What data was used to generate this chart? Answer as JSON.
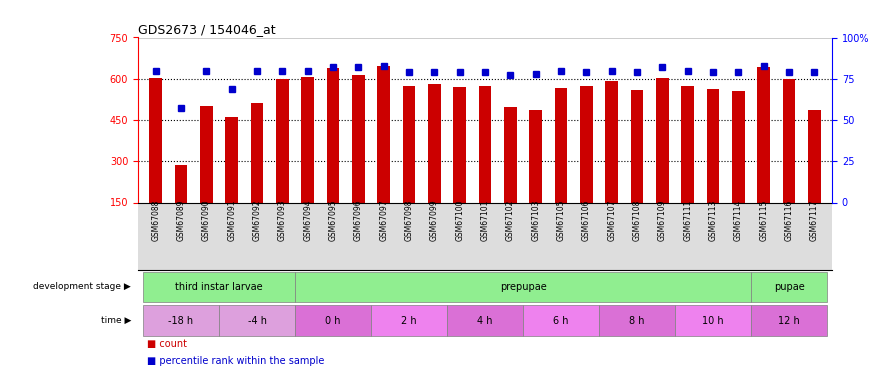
{
  "title": "GDS2673 / 154046_at",
  "samples": [
    "GSM67088",
    "GSM67089",
    "GSM67090",
    "GSM67091",
    "GSM67092",
    "GSM67093",
    "GSM67094",
    "GSM67095",
    "GSM67096",
    "GSM67097",
    "GSM67098",
    "GSM67099",
    "GSM67100",
    "GSM67101",
    "GSM67102",
    "GSM67103",
    "GSM67105",
    "GSM67106",
    "GSM67107",
    "GSM67108",
    "GSM67109",
    "GSM67111",
    "GSM67113",
    "GSM67114",
    "GSM67115",
    "GSM67116",
    "GSM67117"
  ],
  "counts": [
    602,
    285,
    502,
    462,
    510,
    600,
    605,
    640,
    612,
    645,
    572,
    582,
    570,
    572,
    498,
    488,
    565,
    572,
    590,
    560,
    602,
    575,
    563,
    555,
    643,
    600,
    487
  ],
  "percentiles": [
    80,
    57,
    80,
    69,
    80,
    80,
    80,
    82,
    82,
    83,
    79,
    79,
    79,
    79,
    77,
    78,
    80,
    79,
    80,
    79,
    82,
    80,
    79,
    79,
    83,
    79,
    79
  ],
  "ylim_left": [
    150,
    750
  ],
  "ylim_right": [
    0,
    100
  ],
  "yticks_left": [
    150,
    300,
    450,
    600,
    750
  ],
  "yticks_right": [
    0,
    25,
    50,
    75,
    100
  ],
  "bar_color": "#CC0000",
  "dot_color": "#0000CC",
  "hgrid_values": [
    300,
    450,
    600
  ],
  "dev_stage_sections": [
    {
      "label": "third instar larvae",
      "start": 0,
      "end": 6,
      "color": "#90EE90"
    },
    {
      "label": "prepupae",
      "start": 6,
      "end": 24,
      "color": "#90EE90"
    },
    {
      "label": "pupae",
      "start": 24,
      "end": 27,
      "color": "#90EE90"
    }
  ],
  "time_sections": [
    {
      "label": "-18 h",
      "start": 0,
      "end": 3,
      "color": "#DDA0DD"
    },
    {
      "label": "-4 h",
      "start": 3,
      "end": 6,
      "color": "#DDA0DD"
    },
    {
      "label": "0 h",
      "start": 6,
      "end": 9,
      "color": "#DA70D6"
    },
    {
      "label": "2 h",
      "start": 9,
      "end": 12,
      "color": "#EE82EE"
    },
    {
      "label": "4 h",
      "start": 12,
      "end": 15,
      "color": "#DA70D6"
    },
    {
      "label": "6 h",
      "start": 15,
      "end": 18,
      "color": "#EE82EE"
    },
    {
      "label": "8 h",
      "start": 18,
      "end": 21,
      "color": "#DA70D6"
    },
    {
      "label": "10 h",
      "start": 21,
      "end": 24,
      "color": "#EE82EE"
    },
    {
      "label": "12 h",
      "start": 24,
      "end": 27,
      "color": "#DA70D6"
    }
  ],
  "legend_items": [
    {
      "label": "count",
      "color": "#CC0000"
    },
    {
      "label": "percentile rank within the sample",
      "color": "#0000CC"
    }
  ],
  "label_dev_stage": "development stage",
  "label_time": "time"
}
